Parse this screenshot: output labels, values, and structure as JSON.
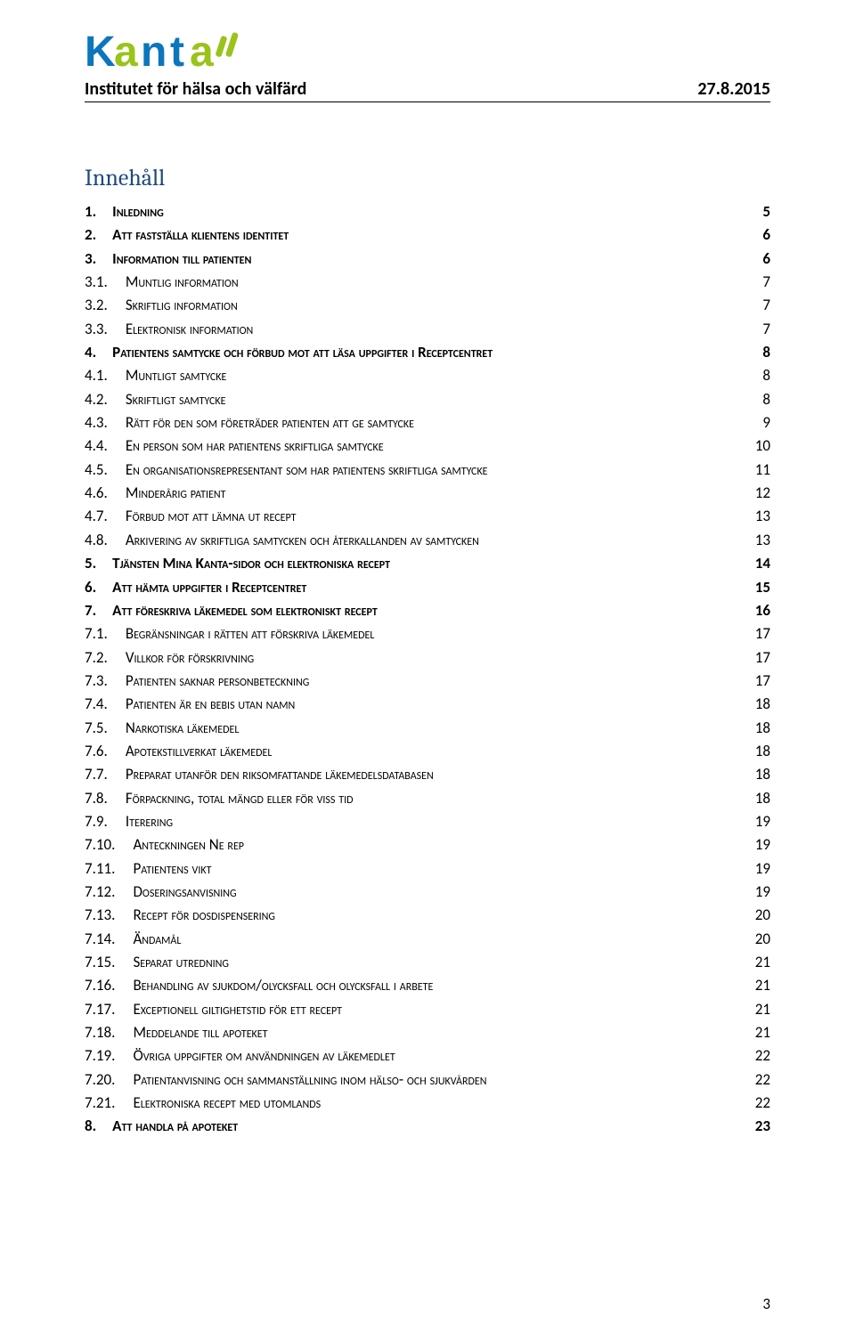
{
  "header": {
    "institute": "Institutet för hälsa och välfärd",
    "date": "27.8.2015"
  },
  "logo": {
    "text": "Kanta",
    "primary_color": "#0b76bc",
    "accent_color": "#9ac31c"
  },
  "toc_title": "Innehåll",
  "colors": {
    "heading": "#1f497d",
    "text": "#000000",
    "rule": "#000000",
    "background": "#ffffff"
  },
  "toc": [
    {
      "level": 0,
      "num": "1.",
      "title": "Inledning",
      "page": "5"
    },
    {
      "level": 0,
      "num": "2.",
      "title": "Att fastställa klientens identitet",
      "page": "6"
    },
    {
      "level": 0,
      "num": "3.",
      "title": "Information till patienten",
      "page": "6"
    },
    {
      "level": 1,
      "num": "3.1.",
      "title": "Muntlig information",
      "page": "7"
    },
    {
      "level": 1,
      "num": "3.2.",
      "title": "Skriftlig information",
      "page": "7"
    },
    {
      "level": 1,
      "num": "3.3.",
      "title": "Elektronisk information",
      "page": "7"
    },
    {
      "level": 0,
      "num": "4.",
      "title": "Patientens samtycke och förbud mot att läsa uppgifter i Receptcentret",
      "page": "8"
    },
    {
      "level": 1,
      "num": "4.1.",
      "title": "Muntligt samtycke",
      "page": "8"
    },
    {
      "level": 1,
      "num": "4.2.",
      "title": "Skriftligt samtycke",
      "page": "8"
    },
    {
      "level": 1,
      "num": "4.3.",
      "title": "Rätt för den som företräder patienten att ge samtycke",
      "page": "9"
    },
    {
      "level": 1,
      "num": "4.4.",
      "title": "En person som har patientens skriftliga samtycke",
      "page": "10"
    },
    {
      "level": 1,
      "num": "4.5.",
      "title": "En organisationsrepresentant som har patientens skriftliga samtycke",
      "page": "11"
    },
    {
      "level": 1,
      "num": "4.6.",
      "title": "Minderårig patient",
      "page": "12"
    },
    {
      "level": 1,
      "num": "4.7.",
      "title": "Förbud mot att lämna ut recept",
      "page": "13"
    },
    {
      "level": 1,
      "num": "4.8.",
      "title": "Arkivering av skriftliga samtycken och återkallanden av samtycken",
      "page": "13"
    },
    {
      "level": 0,
      "num": "5.",
      "title": "Tjänsten Mina Kanta-sidor och elektroniska recept",
      "page": "14"
    },
    {
      "level": 0,
      "num": "6.",
      "title": "Att hämta uppgifter i Receptcentret",
      "page": "15"
    },
    {
      "level": 0,
      "num": "7.",
      "title": "Att föreskriva läkemedel som elektroniskt recept",
      "page": "16"
    },
    {
      "level": 1,
      "num": "7.1.",
      "title": "Begränsningar i rätten att förskriva läkemedel",
      "page": "17"
    },
    {
      "level": 1,
      "num": "7.2.",
      "title": "Villkor för förskrivning",
      "page": "17"
    },
    {
      "level": 1,
      "num": "7.3.",
      "title": "Patienten saknar personbeteckning",
      "page": "17"
    },
    {
      "level": 1,
      "num": "7.4.",
      "title": "Patienten är en bebis utan namn",
      "page": "18"
    },
    {
      "level": 1,
      "num": "7.5.",
      "title": "Narkotiska läkemedel",
      "page": "18"
    },
    {
      "level": 1,
      "num": "7.6.",
      "title": "Apotekstillverkat läkemedel",
      "page": "18"
    },
    {
      "level": 1,
      "num": "7.7.",
      "title": "Preparat utanför den riksomfattande läkemedelsdatabasen",
      "page": "18"
    },
    {
      "level": 1,
      "num": "7.8.",
      "title": "Förpackning, total mängd eller för viss tid",
      "page": "18"
    },
    {
      "level": 1,
      "num": "7.9.",
      "title": "Iterering",
      "page": "19"
    },
    {
      "level": 1,
      "num": "7.10.",
      "title": "Anteckningen Ne rep",
      "page": "19"
    },
    {
      "level": 1,
      "num": "7.11.",
      "title": "Patientens vikt",
      "page": "19"
    },
    {
      "level": 1,
      "num": "7.12.",
      "title": "Doseringsanvisning",
      "page": "19"
    },
    {
      "level": 1,
      "num": "7.13.",
      "title": "Recept för dosdispensering",
      "page": "20"
    },
    {
      "level": 1,
      "num": "7.14.",
      "title": "Ändamål",
      "page": "20"
    },
    {
      "level": 1,
      "num": "7.15.",
      "title": "Separat utredning",
      "page": "21"
    },
    {
      "level": 1,
      "num": "7.16.",
      "title": "Behandling av sjukdom/olycksfall och olycksfall i arbete",
      "page": "21"
    },
    {
      "level": 1,
      "num": "7.17.",
      "title": "Exceptionell giltighetstid för ett recept",
      "page": "21"
    },
    {
      "level": 1,
      "num": "7.18.",
      "title": "Meddelande till apoteket",
      "page": "21"
    },
    {
      "level": 1,
      "num": "7.19.",
      "title": "Övriga uppgifter om användningen av läkemedlet",
      "page": "22"
    },
    {
      "level": 1,
      "num": "7.20.",
      "title": "Patientanvisning och sammanställning inom hälso- och sjukvården",
      "page": "22"
    },
    {
      "level": 1,
      "num": "7.21.",
      "title": "Elektroniska recept med utomlands",
      "page": "22"
    },
    {
      "level": 0,
      "num": "8.",
      "title": "Att handla på apoteket",
      "page": "23"
    }
  ],
  "page_number": "3"
}
